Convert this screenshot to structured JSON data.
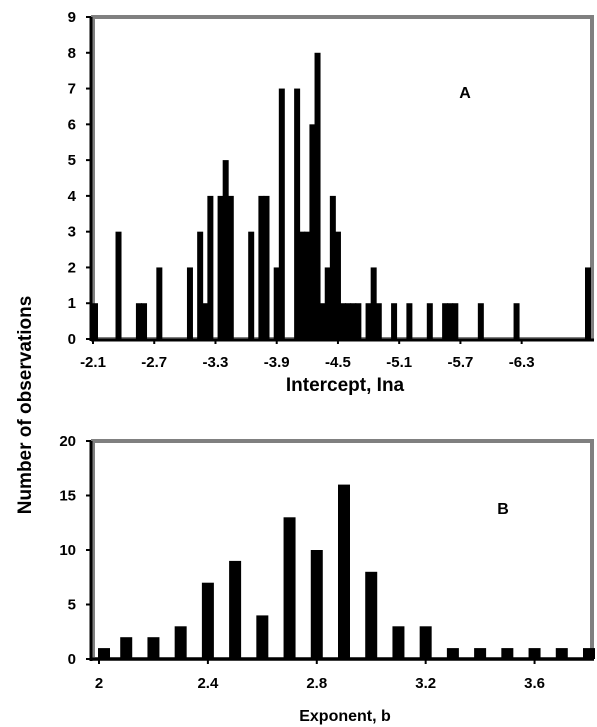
{
  "shared_ylabel": "Number of observations",
  "chart_data": [
    {
      "type": "bar",
      "panel_label": "A",
      "xlabel": "Intercept, Ina",
      "ylabel": "Number of observations",
      "ylim": [
        0,
        9
      ],
      "yticks": [
        "0",
        "1",
        "2",
        "3",
        "4",
        "5",
        "6",
        "7",
        "8",
        "9"
      ],
      "xlim": [
        -2.1,
        -6.95
      ],
      "xticks": [
        {
          "value": -2.1,
          "label": "-2.1"
        },
        {
          "value": -2.7,
          "label": "-2.7"
        },
        {
          "value": -3.3,
          "label": "-3.3"
        },
        {
          "value": -3.9,
          "label": "-3.9"
        },
        {
          "value": -4.5,
          "label": "-4.5"
        },
        {
          "value": -5.1,
          "label": "-5.1"
        },
        {
          "value": -5.7,
          "label": "-5.7"
        },
        {
          "value": -6.3,
          "label": "-6.3"
        }
      ],
      "x": [
        -2.1,
        -2.35,
        -2.55,
        -2.6,
        -2.75,
        -3.05,
        -3.15,
        -3.2,
        -3.25,
        -3.35,
        -3.4,
        -3.45,
        -3.65,
        -3.75,
        -3.8,
        -3.9,
        -3.95,
        -4.1,
        -4.15,
        -4.2,
        -4.25,
        -4.3,
        -4.35,
        -4.4,
        -4.45,
        -4.5,
        -4.55,
        -4.6,
        -4.65,
        -4.7,
        -4.8,
        -4.85,
        -4.9,
        -5.05,
        -5.2,
        -5.4,
        -5.55,
        -5.6,
        -5.65,
        -5.9,
        -6.25,
        -6.95
      ],
      "values": [
        1,
        3,
        1,
        1,
        2,
        2,
        3,
        1,
        4,
        4,
        5,
        4,
        3,
        4,
        4,
        2,
        7,
        7,
        3,
        3,
        6,
        8,
        1,
        2,
        4,
        3,
        1,
        1,
        1,
        1,
        1,
        2,
        1,
        1,
        1,
        1,
        1,
        1,
        1,
        1,
        1,
        2
      ],
      "grid": false
    },
    {
      "type": "bar",
      "panel_label": "B",
      "xlabel": "Exponent, b",
      "ylabel": "Number of observations",
      "ylim": [
        0,
        20
      ],
      "yticks": [
        "0",
        "5",
        "10",
        "15",
        "20"
      ],
      "xlim": [
        2,
        3.8
      ],
      "xticks": [
        {
          "value": 2,
          "label": "2"
        },
        {
          "value": 2.4,
          "label": "2.4"
        },
        {
          "value": 2.8,
          "label": "2.8"
        },
        {
          "value": 3.2,
          "label": "3.2"
        },
        {
          "value": 3.6,
          "label": "3.6"
        }
      ],
      "x": [
        2.0,
        2.1,
        2.2,
        2.3,
        2.4,
        2.5,
        2.6,
        2.7,
        2.8,
        2.9,
        3.0,
        3.1,
        3.2,
        3.3,
        3.4,
        3.5,
        3.6,
        3.7,
        3.8
      ],
      "values": [
        1,
        2,
        2,
        3,
        7,
        9,
        4,
        13,
        10,
        16,
        8,
        3,
        3,
        1,
        1,
        1,
        1,
        1,
        1
      ],
      "grid": false
    }
  ]
}
